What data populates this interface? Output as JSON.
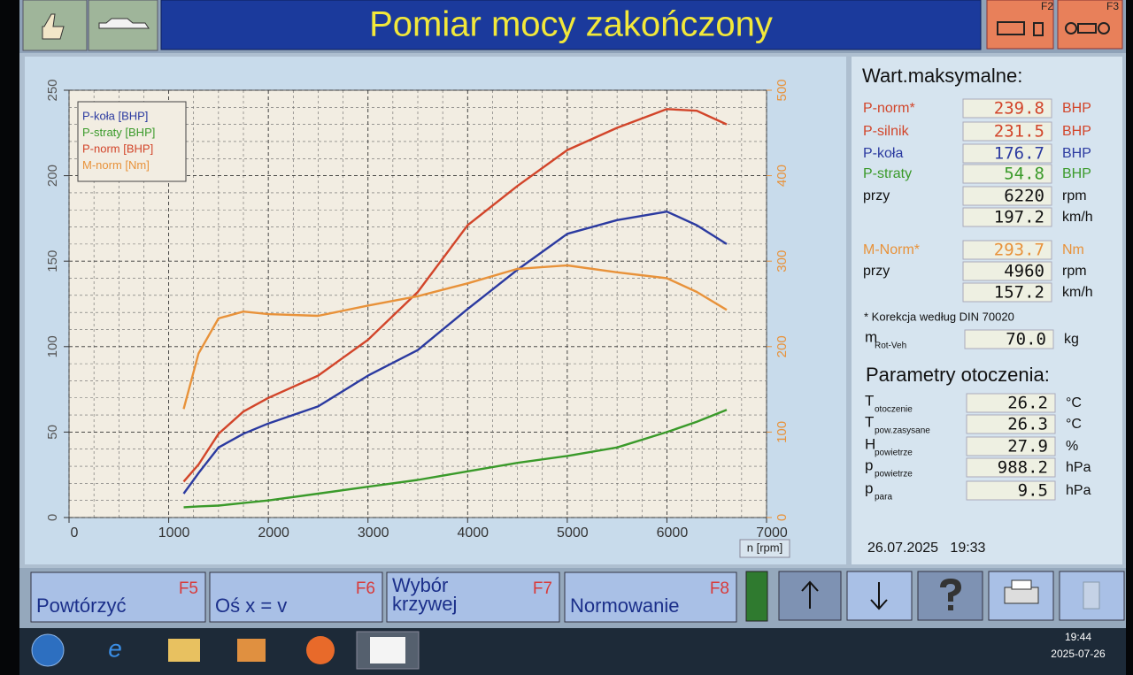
{
  "header": {
    "title": "Pomiar mocy zakończony",
    "keys": [
      "F2",
      "F3"
    ]
  },
  "chart_data": {
    "type": "line",
    "x": [
      1150,
      1300,
      1500,
      1750,
      2000,
      2500,
      3000,
      3500,
      4000,
      4500,
      5000,
      5500,
      6000,
      6300,
      6600
    ],
    "xlim": [
      0,
      7000
    ],
    "xticks": [
      0,
      1000,
      2000,
      3000,
      4000,
      5000,
      6000,
      7000
    ],
    "ylim": [
      0,
      250
    ],
    "yticks": [
      0,
      50,
      100,
      150,
      200,
      250
    ],
    "y2lim": [
      0,
      500
    ],
    "y2ticks": [
      0,
      100,
      200,
      300,
      400,
      500
    ],
    "x_label": "n [rpm]",
    "grid": true,
    "legend": "top-left",
    "series": [
      {
        "name": "P-koła [BHP]",
        "color": "#2b3aa0",
        "values": [
          14,
          26,
          41,
          49,
          55,
          65,
          83,
          98,
          122,
          145,
          166,
          174,
          179,
          171,
          160
        ]
      },
      {
        "name": "P-straty [BHP]",
        "color": "#3a9a2a",
        "values": [
          6,
          6.5,
          7,
          8.5,
          10,
          14,
          18,
          22,
          27,
          32,
          36,
          41,
          50,
          56,
          63
        ]
      },
      {
        "name": "P-norm [BHP]",
        "color": "#d2452a",
        "values": [
          21,
          31,
          49,
          62,
          70,
          83,
          104,
          132,
          171,
          194,
          215,
          228,
          239,
          238,
          230
        ]
      },
      {
        "name": "M-norm [Nm]",
        "color": "#e8923a",
        "axis": "y2",
        "values": [
          127,
          192,
          233,
          241,
          238,
          236,
          248,
          259,
          274,
          291,
          295,
          287,
          280,
          264,
          243
        ]
      }
    ]
  },
  "max_values": {
    "title": "Wart.maksymalne:",
    "rows": [
      {
        "label": "P-norm*",
        "color": "#d2452a",
        "value": "239.8",
        "unit": "BHP"
      },
      {
        "label": "P-silnik",
        "color": "#d2452a",
        "value": "231.5",
        "unit": "BHP"
      },
      {
        "label": "P-koła",
        "color": "#2b3aa0",
        "value": "176.7",
        "unit": "BHP"
      },
      {
        "label": "P-straty",
        "color": "#3a9a2a",
        "value": "54.8",
        "unit": "BHP"
      },
      {
        "label": "przy",
        "value": "6220",
        "unit": "rpm"
      },
      {
        "value": "197.2",
        "unit": "km/h"
      }
    ]
  },
  "torque": {
    "rows": [
      {
        "label": "M-Norm*",
        "color": "#e8923a",
        "value": "293.7",
        "unit": "Nm"
      },
      {
        "label": "przy",
        "value": "4960",
        "unit": "rpm"
      },
      {
        "value": "157.2",
        "unit": "km/h"
      }
    ]
  },
  "note": "* Korekcja według DIN 70020",
  "mass": {
    "symbol": "m",
    "sub": "Rot-Veh",
    "value": "70.0",
    "unit": "kg"
  },
  "environment": {
    "title": "Parametry otoczenia:",
    "rows": [
      {
        "symbol": "T",
        "sub": "otoczenie",
        "value": "26.2",
        "unit": "°C"
      },
      {
        "symbol": "T",
        "sub": "pow.zasysane",
        "value": "26.3",
        "unit": "°C"
      },
      {
        "symbol": "H",
        "sub": "powietrze",
        "value": "27.9",
        "unit": "%"
      },
      {
        "symbol": "p",
        "sub": "powietrze",
        "value": "988.2",
        "unit": "hPa"
      },
      {
        "symbol": "p",
        "sub": "para",
        "value": "9.5",
        "unit": "hPa"
      }
    ]
  },
  "timestamp": "26.07.2025   19:33",
  "function_keys": [
    {
      "lines": [
        "Powtórzyć"
      ],
      "key": "F5"
    },
    {
      "lines": [
        "Oś x = v"
      ],
      "key": "F6"
    },
    {
      "lines": [
        "Wybór",
        "krzywej"
      ],
      "key": "F7"
    },
    {
      "lines": [
        "Normowanie"
      ],
      "key": "F8"
    }
  ],
  "taskbar": {
    "time": "19:44",
    "date": "2025-07-26"
  }
}
